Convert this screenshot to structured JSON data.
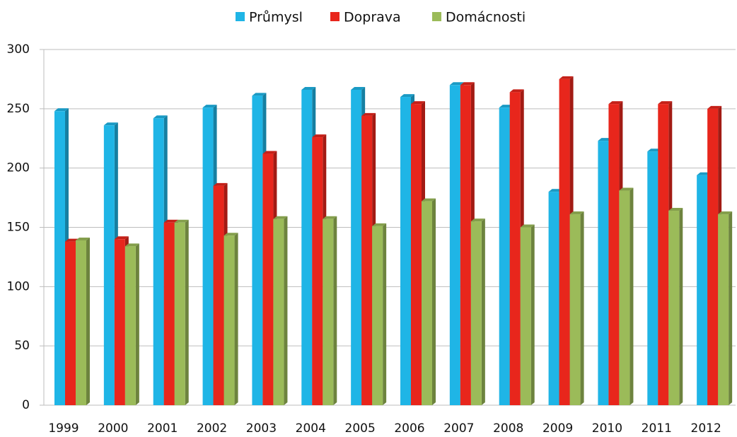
{
  "chart_data": {
    "type": "bar",
    "categories": [
      "1999",
      "2000",
      "2001",
      "2002",
      "2003",
      "2004",
      "2005",
      "2006",
      "2007",
      "2008",
      "2009",
      "2010",
      "2011",
      "2012"
    ],
    "series": [
      {
        "name": "Průmysl",
        "color": "#1fb5e6",
        "values": [
          248,
          236,
          242,
          251,
          261,
          266,
          266,
          260,
          270,
          251,
          180,
          223,
          214,
          194
        ]
      },
      {
        "name": "Doprava",
        "color": "#e8261c",
        "values": [
          138,
          140,
          154,
          185,
          212,
          226,
          244,
          254,
          270,
          264,
          275,
          254,
          254,
          250
        ]
      },
      {
        "name": "Domácnosti",
        "color": "#9bbb59",
        "values": [
          139,
          134,
          154,
          143,
          157,
          157,
          151,
          172,
          155,
          150,
          161,
          181,
          164,
          161
        ]
      }
    ],
    "ylim": [
      0,
      300
    ],
    "yticks": [
      0,
      50,
      100,
      150,
      200,
      250,
      300
    ],
    "grid": true,
    "legend": "top"
  }
}
